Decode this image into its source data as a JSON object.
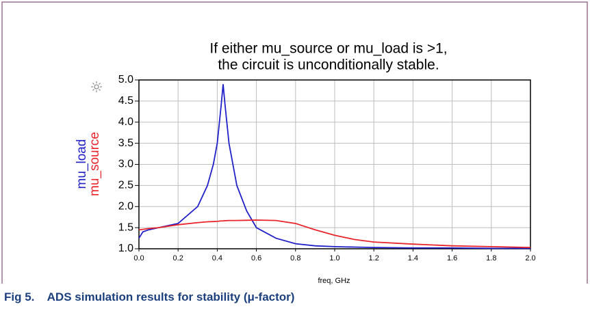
{
  "caption": "Fig 5.    ADS simulation results for stability (μ-factor)",
  "chart_data": {
    "type": "line",
    "title": [
      "If either mu_source or mu_load is >1,",
      "the circuit is unconditionally stable."
    ],
    "xlabel": "freq, GHz",
    "x": [
      0,
      0.02,
      0.05,
      0.1,
      0.2,
      0.3,
      0.35,
      0.38,
      0.4,
      0.42,
      0.43,
      0.44,
      0.46,
      0.5,
      0.55,
      0.6,
      0.7,
      0.8,
      0.9,
      1.0,
      1.1,
      1.2,
      1.4,
      1.6,
      1.8,
      2.0
    ],
    "series": [
      {
        "name": "mu_load",
        "color": "#2020c8",
        "values": [
          1.25,
          1.4,
          1.45,
          1.5,
          1.6,
          2.0,
          2.5,
          3.0,
          3.5,
          4.4,
          4.9,
          4.4,
          3.5,
          2.5,
          1.9,
          1.5,
          1.25,
          1.12,
          1.07,
          1.05,
          1.04,
          1.03,
          1.02,
          1.02,
          1.01,
          1.01
        ]
      },
      {
        "name": "mu_source",
        "color": "#e8242a",
        "values": [
          1.45,
          1.46,
          1.48,
          1.5,
          1.57,
          1.62,
          1.64,
          1.645,
          1.65,
          1.66,
          1.66,
          1.665,
          1.67,
          1.67,
          1.675,
          1.68,
          1.67,
          1.6,
          1.45,
          1.32,
          1.22,
          1.16,
          1.11,
          1.07,
          1.05,
          1.03
        ]
      }
    ],
    "xlim": [
      0,
      2
    ],
    "ylim": [
      1,
      5
    ],
    "xticks": [
      {
        "value": 0,
        "label": "0.0"
      },
      0.2,
      0.4,
      0.6,
      0.8,
      {
        "value": 1,
        "label": "1.0"
      },
      1.2,
      1.4,
      1.6,
      1.8,
      {
        "value": 2,
        "label": "2.0"
      }
    ],
    "yticks": [
      {
        "value": 1,
        "label": "1.0"
      },
      1.5,
      {
        "value": 2,
        "label": "2.0"
      },
      2.5,
      {
        "value": 3,
        "label": "3.0"
      },
      3.5,
      {
        "value": 4,
        "label": "4.0"
      },
      4.5,
      {
        "value": 5,
        "label": "5.0"
      }
    ],
    "grid": true
  }
}
